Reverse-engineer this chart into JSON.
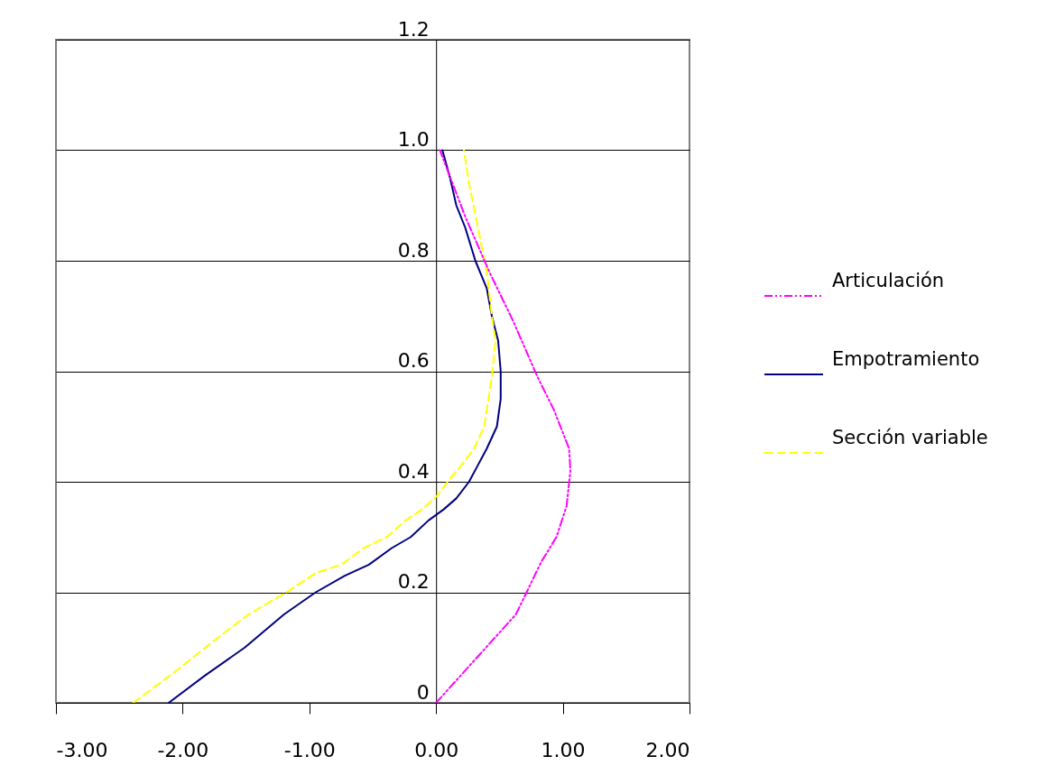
{
  "chart_data": {
    "type": "line",
    "xlim": [
      -3,
      2
    ],
    "ylim": [
      0,
      1.2
    ],
    "xticks": [
      {
        "value": -3,
        "label": "-3.00"
      },
      {
        "value": -2,
        "label": "-2.00"
      },
      {
        "value": -1,
        "label": "-1.00"
      },
      {
        "value": 0,
        "label": "0.00"
      },
      {
        "value": 1,
        "label": "1.00"
      },
      {
        "value": 2,
        "label": "2.00"
      }
    ],
    "yticks": [
      0,
      0.2,
      0.4,
      0.6,
      0.8,
      {
        "value": 1,
        "label": "1.0"
      },
      1.2
    ],
    "grid": "y",
    "legend": "right",
    "marker": "none",
    "series": [
      {
        "name": "Articulación",
        "color": "#ff00ff",
        "line_style": "dotted",
        "x": [
          0,
          0.63,
          0.83,
          0.95,
          1.03,
          1.06,
          1.05,
          0.93,
          0.8,
          0.61,
          0.42,
          0.23,
          0.03
        ],
        "values": [
          0,
          0.16,
          0.255,
          0.3,
          0.356,
          0.42,
          0.46,
          0.53,
          0.59,
          0.69,
          0.78,
          0.88,
          1.0
        ]
      },
      {
        "name": "Empotramiento",
        "color": "#000080",
        "line_style": "solid",
        "x": [
          -2.11,
          -1.82,
          -1.51,
          -1.2,
          -0.95,
          -0.72,
          -0.53,
          -0.35,
          -0.2,
          -0.06,
          0.06,
          0.16,
          0.26,
          0.33,
          0.4,
          0.48,
          0.51,
          0.51,
          0.49,
          0.44,
          0.4,
          0.31,
          0.23,
          0.16,
          0.11,
          0.05
        ],
        "values": [
          0,
          0.05,
          0.1,
          0.16,
          0.2,
          0.23,
          0.25,
          0.28,
          0.3,
          0.33,
          0.35,
          0.37,
          0.4,
          0.43,
          0.46,
          0.5,
          0.55,
          0.6,
          0.655,
          0.7,
          0.75,
          0.8,
          0.86,
          0.9,
          0.95,
          1.0
        ]
      },
      {
        "name": "Sección variable",
        "color": "#ffff00",
        "line_style": "dashed",
        "x": [
          -2.39,
          -2.04,
          -1.71,
          -1.48,
          -1.18,
          -0.95,
          -0.75,
          -0.57,
          -0.39,
          -0.24,
          -0.11,
          0.01,
          0.09,
          0.2,
          0.3,
          0.38,
          0.44,
          0.47,
          0.44,
          0.4,
          0.33,
          0.26,
          0.22
        ],
        "values": [
          0,
          0.06,
          0.12,
          0.16,
          0.2,
          0.235,
          0.25,
          0.28,
          0.3,
          0.33,
          0.35,
          0.375,
          0.4,
          0.43,
          0.46,
          0.5,
          0.59,
          0.655,
          0.7,
          0.78,
          0.86,
          0.94,
          1.0
        ]
      }
    ]
  }
}
